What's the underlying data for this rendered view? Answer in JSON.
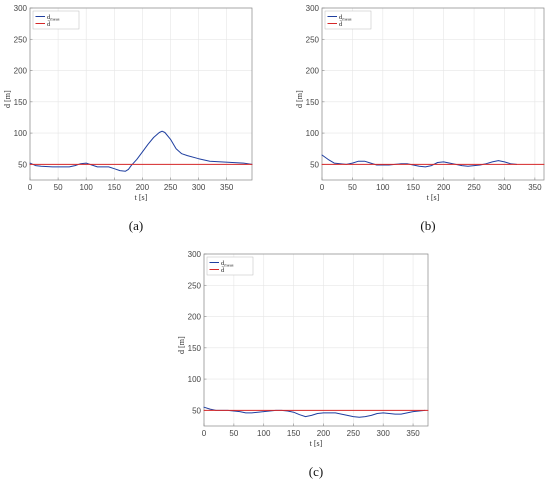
{
  "colors": {
    "series_measured": "#1f3fa0",
    "series_reference": "#d62728",
    "grid": "#e6e6e6",
    "axes": "#888888"
  },
  "chart_data": [
    {
      "panel": "(a)",
      "type": "line",
      "xlabel": "t [s]",
      "ylabel": "d [m]",
      "xlim": [
        0,
        395
      ],
      "ylim": [
        25,
        300
      ],
      "xticks": [
        0,
        50,
        100,
        150,
        200,
        250,
        300,
        350
      ],
      "yticks": [
        50,
        100,
        150,
        200,
        250,
        300
      ],
      "grid": true,
      "legend": "top-left",
      "series": [
        {
          "name": "d_meas",
          "label_main": "d",
          "label_sub": "meas",
          "x": [
            0,
            10,
            20,
            40,
            60,
            70,
            80,
            90,
            100,
            110,
            120,
            140,
            150,
            160,
            170,
            175,
            180,
            190,
            200,
            210,
            220,
            230,
            235,
            240,
            250,
            260,
            270,
            280,
            300,
            320,
            340,
            360,
            380,
            395
          ],
          "y": [
            52,
            48,
            47,
            46,
            46,
            46,
            48,
            51,
            52,
            49,
            46,
            46,
            43,
            40,
            39,
            42,
            48,
            58,
            70,
            82,
            93,
            101,
            103,
            101,
            90,
            75,
            67,
            64,
            59,
            55,
            54,
            53,
            52,
            50
          ]
        },
        {
          "name": "d_ref",
          "label_main": "d̄",
          "x": [
            0,
            395
          ],
          "y": [
            50,
            50
          ]
        }
      ]
    },
    {
      "panel": "(b)",
      "type": "line",
      "xlabel": "t [s]",
      "ylabel": "d [m]",
      "xlim": [
        0,
        365
      ],
      "ylim": [
        25,
        300
      ],
      "xticks": [
        0,
        50,
        100,
        150,
        200,
        250,
        300,
        350
      ],
      "yticks": [
        50,
        100,
        150,
        200,
        250,
        300
      ],
      "grid": true,
      "legend": "top-left",
      "series": [
        {
          "name": "d_meas",
          "label_main": "d",
          "label_sub": "meas",
          "x": [
            0,
            10,
            20,
            30,
            40,
            50,
            60,
            70,
            80,
            90,
            100,
            110,
            120,
            130,
            140,
            150,
            160,
            170,
            180,
            190,
            200,
            210,
            220,
            230,
            240,
            250,
            260,
            270,
            280,
            290,
            300,
            310,
            320
          ],
          "y": [
            65,
            58,
            52,
            51,
            50,
            52,
            55,
            55,
            52,
            49,
            49,
            49,
            50,
            51,
            51,
            49,
            47,
            46,
            48,
            53,
            54,
            52,
            50,
            48,
            47,
            48,
            49,
            51,
            54,
            56,
            54,
            51,
            50
          ]
        },
        {
          "name": "d_ref",
          "label_main": "d̄",
          "x": [
            0,
            365
          ],
          "y": [
            50,
            50
          ]
        }
      ]
    },
    {
      "panel": "(c)",
      "type": "line",
      "xlabel": "t [s]",
      "ylabel": "d [m]",
      "xlim": [
        0,
        375
      ],
      "ylim": [
        25,
        300
      ],
      "xticks": [
        0,
        50,
        100,
        150,
        200,
        250,
        300,
        350
      ],
      "yticks": [
        50,
        100,
        150,
        200,
        250,
        300
      ],
      "grid": true,
      "legend": "top-left",
      "series": [
        {
          "name": "d_meas",
          "label_main": "d",
          "label_sub": "meas",
          "x": [
            0,
            10,
            20,
            30,
            40,
            50,
            60,
            70,
            80,
            90,
            100,
            110,
            120,
            130,
            140,
            150,
            160,
            170,
            180,
            190,
            200,
            210,
            220,
            230,
            240,
            250,
            260,
            270,
            280,
            290,
            300,
            310,
            320,
            330,
            340,
            350,
            360,
            370
          ],
          "y": [
            55,
            52,
            50,
            50,
            50,
            49,
            48,
            46,
            46,
            47,
            48,
            49,
            50,
            50,
            49,
            47,
            43,
            40,
            42,
            45,
            46,
            46,
            46,
            44,
            42,
            40,
            39,
            40,
            42,
            45,
            46,
            45,
            44,
            44,
            46,
            48,
            49,
            50
          ]
        },
        {
          "name": "d_ref",
          "label_main": "d̄",
          "x": [
            0,
            375
          ],
          "y": [
            50,
            50
          ]
        }
      ]
    }
  ]
}
